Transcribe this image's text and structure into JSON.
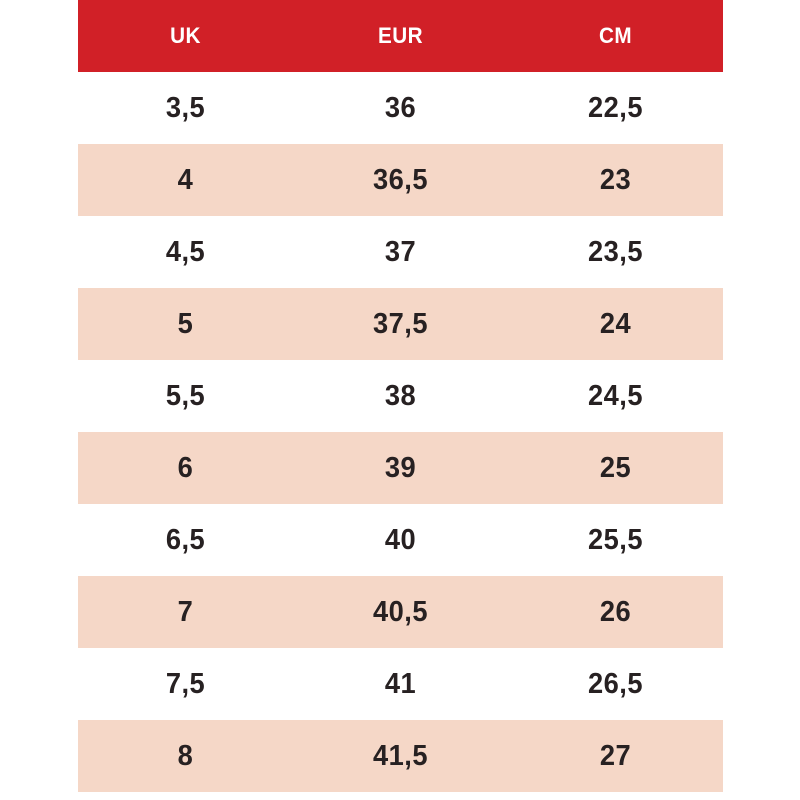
{
  "chart_data": {
    "type": "table",
    "columns": [
      "UK",
      "EUR",
      "CM"
    ],
    "rows": [
      [
        "3,5",
        "36",
        "22,5"
      ],
      [
        "4",
        "36,5",
        "23"
      ],
      [
        "4,5",
        "37",
        "23,5"
      ],
      [
        "5",
        "37,5",
        "24"
      ],
      [
        "5,5",
        "38",
        "24,5"
      ],
      [
        "6",
        "39",
        "25"
      ],
      [
        "6,5",
        "40",
        "25,5"
      ],
      [
        "7",
        "40,5",
        "26"
      ],
      [
        "7,5",
        "41",
        "26,5"
      ],
      [
        "8",
        "41,5",
        "27"
      ]
    ],
    "layout_hints": {
      "header_position": "top",
      "grid": "off",
      "row_striping": "alternating",
      "text_align": "center"
    }
  },
  "colors": {
    "header_bg": "#d12027",
    "header_text": "#ffffff",
    "row_stripe_bg": "#f5d7c7",
    "row_plain_bg": "#ffffff",
    "body_text": "#272122"
  }
}
